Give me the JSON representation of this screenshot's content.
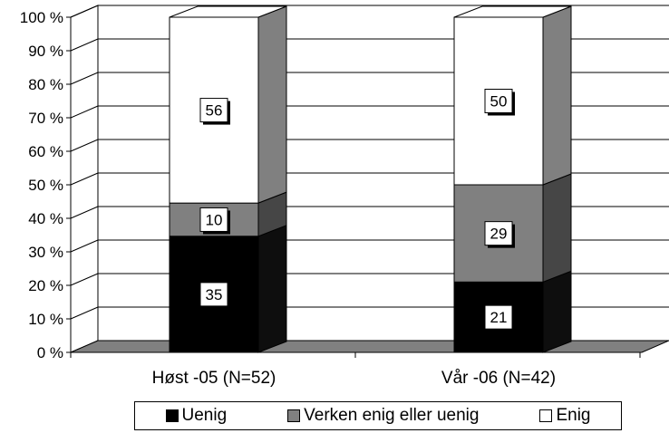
{
  "colors": {
    "Uenig": "#000000",
    "Verken enig eller uenig": "#808080",
    "Enig": "#ffffff"
  },
  "chart_data": {
    "type": "bar",
    "stacked": true,
    "three_d": true,
    "title": "",
    "categories": [
      "Høst -05 (N=52)",
      "Vår -06 (N=42)"
    ],
    "series": [
      {
        "name": "Uenig",
        "values": [
          35,
          21
        ]
      },
      {
        "name": "Verken enig eller uenig",
        "values": [
          10,
          29
        ]
      },
      {
        "name": "Enig",
        "values": [
          56,
          50
        ]
      }
    ],
    "y_ticks": [
      "0 %",
      "10 %",
      "20 %",
      "30 %",
      "40 %",
      "50 %",
      "60 %",
      "70 %",
      "80 %",
      "90 %",
      "100 %"
    ],
    "ylim": [
      0,
      100
    ],
    "y_unit": "percent",
    "grid": true,
    "legend_position": "bottom"
  }
}
